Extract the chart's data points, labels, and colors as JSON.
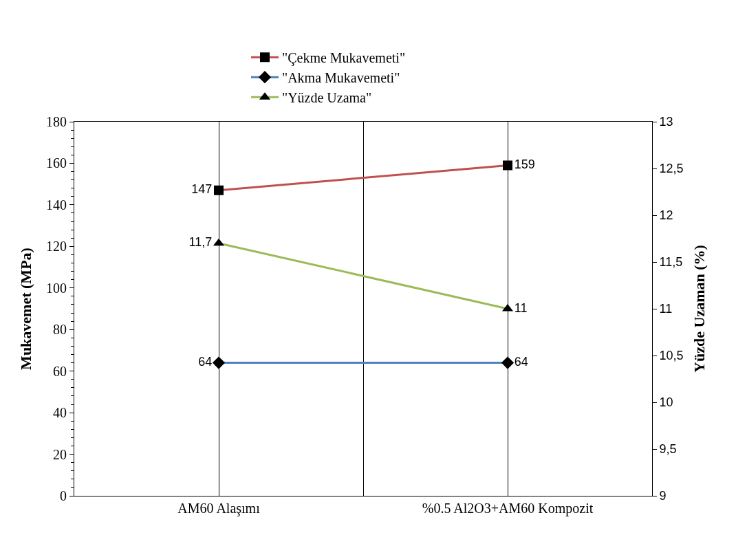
{
  "chart_data": {
    "type": "line",
    "categories": [
      "AM60 Alaşımı",
      "%0.5 Al2O3+AM60 Kompozit"
    ],
    "ylabel": "Mukavemet (MPa)",
    "y2label": "Yüzde Uzaman (%)",
    "ylim": [
      0,
      180
    ],
    "yticks": [
      0,
      20,
      40,
      60,
      80,
      100,
      120,
      140,
      160,
      180
    ],
    "y2lim": [
      9,
      13
    ],
    "y2ticks": [
      9,
      {
        "value": 9.5,
        "label": "9,5"
      },
      10,
      {
        "value": 10.5,
        "label": "10,5"
      },
      11,
      {
        "value": 11.5,
        "label": "11,5"
      },
      12,
      {
        "value": 12.5,
        "label": "12,5"
      },
      13
    ],
    "series": [
      {
        "name": "\"Çekme Mukavemeti\"",
        "color": "#c0504d",
        "marker": "square",
        "values": [
          147,
          159
        ],
        "value_labels": [
          "147",
          "159"
        ]
      },
      {
        "name": "\"Akma Mukavemeti\"",
        "color": "#4f81bd",
        "marker": "diamond",
        "values": [
          64,
          64
        ],
        "value_labels": [
          "64",
          "64"
        ]
      },
      {
        "name": "\"Yüzde Uzama\"",
        "color": "#9bbb59",
        "marker": "triangle",
        "axis": "y2",
        "values": [
          11.7,
          11
        ],
        "value_labels": [
          "11,7",
          "11"
        ]
      }
    ],
    "grid": "x",
    "legend": "top",
    "line_style": "solid"
  }
}
